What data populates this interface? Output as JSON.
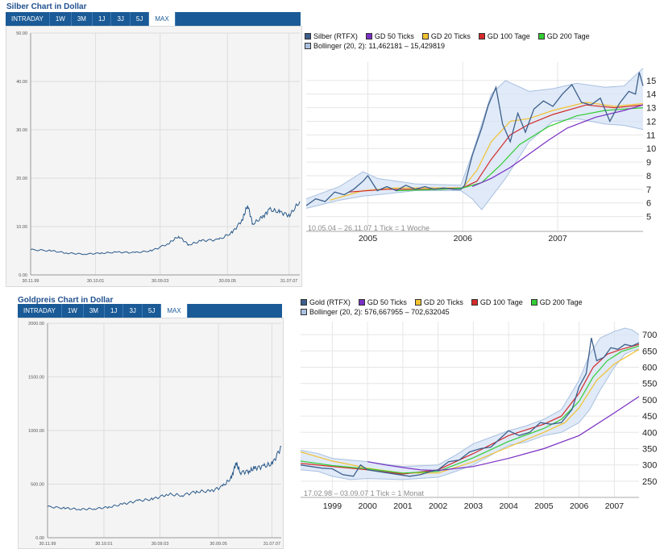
{
  "colors": {
    "line": "#2a5a8a",
    "grid": "#dddddd",
    "band_fill": "#d6e3f5",
    "band_edge": "#a9c0e0",
    "gd50": "#7a2fc4",
    "gd20": "#f2c230",
    "gd100": "#d42a2a",
    "gd200": "#33cc33",
    "price": "#3d5f8c"
  },
  "silver_simple": {
    "title": "Silber Chart in Dollar",
    "tabs": [
      "INTRADAY",
      "1W",
      "3M",
      "1J",
      "3J",
      "5J",
      "MAX"
    ],
    "active_tab": "MAX"
  },
  "gold_simple": {
    "title": "Goldpreis Chart in Dollar",
    "tabs": [
      "INTRADAY",
      "1W",
      "3M",
      "1J",
      "3J",
      "5J",
      "MAX"
    ],
    "active_tab": "MAX"
  },
  "silver_detail": {
    "legend_row1": [
      "Silber (RTFX)",
      "GD 50 Ticks",
      "GD 20 Ticks",
      "GD 100 Tage",
      "GD 200 Tage"
    ],
    "legend_row2": "Bollinger (20, 2): 11,462181 – 15,429819",
    "footer": "10.05.04 – 26.11.07   1 Tick = 1 Woche"
  },
  "gold_detail": {
    "legend_row1": [
      "Gold (RTFX)",
      "GD 50 Ticks",
      "GD 20 Ticks",
      "GD 100 Tage",
      "GD 200 Tage"
    ],
    "legend_row2": "Bollinger (20, 2): 576,667955 – 702,632045",
    "footer": "17.02.98 – 03.09.07   1 Tick = 1 Monat"
  },
  "chart_data": [
    {
      "type": "line",
      "title": "Silber Chart in Dollar",
      "ylim": [
        0,
        50
      ],
      "y_ticks": [
        "0.00",
        "10.00",
        "20.00",
        "30.00",
        "40.00",
        "50.00"
      ],
      "x_tick_labels": [
        "30.11.99",
        "30.10.01",
        "30.09.03",
        "30.09.05",
        "31.07.07"
      ],
      "x": [
        1999.9,
        2000.5,
        2001.0,
        2001.5,
        2002.0,
        2002.5,
        2003.0,
        2003.5,
        2004.0,
        2004.3,
        2004.6,
        2005.0,
        2005.5,
        2005.9,
        2006.2,
        2006.35,
        2006.5,
        2006.8,
        2007.0,
        2007.3,
        2007.6,
        2007.9
      ],
      "values": [
        5.2,
        5.0,
        4.5,
        4.3,
        4.5,
        4.7,
        4.6,
        5.0,
        6.5,
        8.0,
        6.2,
        7.1,
        7.3,
        8.8,
        11.5,
        14.5,
        10.5,
        12.0,
        13.5,
        13.0,
        12.3,
        15.2
      ]
    },
    {
      "type": "line",
      "title": "Goldpreis Chart in Dollar",
      "ylim": [
        0,
        2000
      ],
      "y_ticks": [
        "0.00",
        "500.00",
        "1000.00",
        "1500.00",
        "2000.00"
      ],
      "x_tick_labels": [
        "30.11.99",
        "30.10.01",
        "30.09.03",
        "30.09.05",
        "31.07.07"
      ],
      "x": [
        1999.9,
        2000.5,
        2001.0,
        2001.5,
        2002.0,
        2002.5,
        2003.0,
        2003.5,
        2004.0,
        2004.5,
        2005.0,
        2005.5,
        2005.9,
        2006.2,
        2006.35,
        2006.5,
        2006.8,
        2007.0,
        2007.3,
        2007.6,
        2007.9
      ],
      "values": [
        290,
        275,
        265,
        270,
        285,
        315,
        345,
        360,
        405,
        395,
        430,
        435,
        480,
        560,
        700,
        610,
        620,
        650,
        665,
        690,
        850
      ]
    },
    {
      "type": "line",
      "title": "Silber (RTFX)",
      "ylim": [
        4.5,
        16
      ],
      "y_ticks": [
        "5",
        "6",
        "7",
        "8",
        "9",
        "10",
        "11",
        "12",
        "13",
        "14",
        "15"
      ],
      "xlim": [
        2004.35,
        2007.9
      ],
      "x_tick_labels": [
        "2005",
        "2006",
        "2007"
      ],
      "series": [
        {
          "name": "Silber (RTFX)",
          "x": [
            2004.35,
            2004.45,
            2004.55,
            2004.65,
            2004.75,
            2004.85,
            2004.95,
            2005.0,
            2005.1,
            2005.2,
            2005.3,
            2005.4,
            2005.5,
            2005.6,
            2005.7,
            2005.8,
            2005.9,
            2005.98,
            2006.02,
            2006.1,
            2006.2,
            2006.27,
            2006.35,
            2006.42,
            2006.5,
            2006.58,
            2006.66,
            2006.75,
            2006.85,
            2006.95,
            2007.05,
            2007.15,
            2007.25,
            2007.35,
            2007.45,
            2007.55,
            2007.65,
            2007.75,
            2007.82,
            2007.86,
            2007.9
          ],
          "values": [
            5.8,
            6.3,
            6.1,
            6.8,
            6.6,
            7.0,
            7.6,
            8.0,
            6.9,
            7.2,
            6.9,
            7.3,
            7.0,
            7.2,
            7.0,
            7.1,
            7.0,
            7.0,
            7.3,
            9.5,
            11.5,
            13.2,
            14.5,
            11.8,
            10.5,
            12.6,
            11.2,
            12.9,
            13.5,
            13.1,
            14.0,
            14.7,
            13.4,
            13.2,
            13.7,
            12.0,
            13.3,
            14.2,
            14.0,
            15.6,
            14.6
          ]
        },
        {
          "name": "Bollinger upper",
          "x": [
            2004.35,
            2004.7,
            2004.95,
            2005.1,
            2005.5,
            2005.98,
            2006.1,
            2006.3,
            2006.45,
            2006.7,
            2006.95,
            2007.2,
            2007.5,
            2007.7,
            2007.9
          ],
          "values": [
            6.3,
            7.2,
            8.3,
            7.8,
            7.4,
            7.3,
            9.6,
            14.0,
            15.0,
            14.2,
            14.4,
            14.8,
            14.5,
            14.6,
            15.9
          ]
        },
        {
          "name": "Bollinger lower",
          "x": [
            2004.35,
            2004.7,
            2004.95,
            2005.1,
            2005.5,
            2005.98,
            2006.1,
            2006.2,
            2006.45,
            2006.7,
            2006.95,
            2007.2,
            2007.5,
            2007.7,
            2007.9
          ],
          "values": [
            5.6,
            6.2,
            6.5,
            6.6,
            6.9,
            6.9,
            6.3,
            5.5,
            7.8,
            10.5,
            12.0,
            12.2,
            11.8,
            11.7,
            11.4
          ]
        },
        {
          "name": "GD 20 Ticks",
          "x": [
            2004.6,
            2004.95,
            2005.3,
            2005.7,
            2006.0,
            2006.15,
            2006.3,
            2006.5,
            2006.7,
            2006.95,
            2007.3,
            2007.6,
            2007.9
          ],
          "values": [
            6.2,
            6.9,
            7.1,
            7.1,
            7.1,
            8.4,
            10.5,
            12.0,
            12.2,
            12.8,
            13.4,
            13.1,
            13.3
          ]
        },
        {
          "name": "GD 100 Tage",
          "x": [
            2004.8,
            2005.2,
            2005.6,
            2006.0,
            2006.15,
            2006.3,
            2006.5,
            2006.7,
            2006.95,
            2007.3,
            2007.6,
            2007.9
          ],
          "values": [
            6.8,
            7.0,
            7.0,
            7.1,
            7.6,
            9.2,
            11.0,
            11.8,
            12.5,
            13.2,
            13.0,
            13.2
          ]
        },
        {
          "name": "GD 200 Tage",
          "x": [
            2005.3,
            2005.8,
            2006.0,
            2006.2,
            2006.4,
            2006.6,
            2006.9,
            2007.2,
            2007.5,
            2007.9
          ],
          "values": [
            6.9,
            7.0,
            7.1,
            7.5,
            8.8,
            10.3,
            11.6,
            12.4,
            12.8,
            13.0
          ]
        },
        {
          "name": "GD 50 Ticks",
          "x": [
            2006.1,
            2006.3,
            2006.5,
            2006.7,
            2006.9,
            2007.1,
            2007.4,
            2007.7,
            2007.9
          ],
          "values": [
            7.2,
            7.8,
            8.6,
            9.6,
            10.6,
            11.5,
            12.3,
            12.8,
            13.2
          ]
        }
      ]
    },
    {
      "type": "line",
      "title": "Gold (RTFX)",
      "ylim": [
        225,
        725
      ],
      "y_ticks": [
        "250",
        "300",
        "350",
        "400",
        "450",
        "500",
        "550",
        "600",
        "650",
        "700"
      ],
      "xlim": [
        1998.1,
        2007.7
      ],
      "x_tick_labels": [
        "1999",
        "2000",
        "2001",
        "2002",
        "2003",
        "2004",
        "2005",
        "2006",
        "2007"
      ],
      "series": [
        {
          "name": "Gold (RTFX)",
          "x": [
            1998.1,
            1998.4,
            1998.7,
            1999.0,
            1999.3,
            1999.6,
            1999.8,
            2000.0,
            2000.3,
            2000.6,
            2000.9,
            2001.2,
            2001.5,
            2001.8,
            2002.0,
            2002.3,
            2002.6,
            2002.9,
            2003.2,
            2003.5,
            2003.8,
            2004.0,
            2004.3,
            2004.6,
            2004.9,
            2005.2,
            2005.5,
            2005.8,
            2006.0,
            2006.2,
            2006.35,
            2006.5,
            2006.7,
            2006.9,
            2007.1,
            2007.3,
            2007.5,
            2007.7
          ],
          "values": [
            300,
            295,
            290,
            288,
            270,
            265,
            300,
            285,
            280,
            275,
            270,
            265,
            270,
            280,
            285,
            310,
            315,
            340,
            350,
            355,
            385,
            405,
            390,
            400,
            430,
            425,
            430,
            470,
            540,
            580,
            690,
            620,
            630,
            660,
            655,
            670,
            665,
            675
          ]
        },
        {
          "name": "Bollinger upper",
          "x": [
            1998.1,
            1998.6,
            1999.0,
            1999.5,
            2000.0,
            2001.0,
            2002.0,
            2002.5,
            2003.0,
            2003.5,
            2004.0,
            2004.5,
            2005.0,
            2005.5,
            2006.0,
            2006.3,
            2006.6,
            2007.0,
            2007.3,
            2007.5,
            2007.7
          ],
          "values": [
            345,
            335,
            320,
            315,
            310,
            295,
            300,
            330,
            365,
            385,
            405,
            420,
            440,
            470,
            560,
            640,
            690,
            710,
            720,
            715,
            700
          ]
        },
        {
          "name": "Bollinger lower",
          "x": [
            1998.1,
            1998.6,
            1999.0,
            1999.5,
            2000.0,
            2001.0,
            2002.0,
            2002.5,
            2003.0,
            2003.5,
            2004.0,
            2004.5,
            2005.0,
            2005.5,
            2006.0,
            2006.3,
            2006.6,
            2007.0,
            2007.3,
            2007.5,
            2007.7
          ],
          "values": [
            285,
            280,
            265,
            255,
            258,
            255,
            262,
            280,
            300,
            330,
            360,
            370,
            390,
            400,
            430,
            470,
            530,
            600,
            640,
            650,
            655
          ]
        },
        {
          "name": "GD 20 Ticks",
          "x": [
            1998.1,
            1999.0,
            2000.0,
            2001.0,
            2002.0,
            2003.0,
            2004.0,
            2005.0,
            2005.6,
            2006.0,
            2006.5,
            2007.0,
            2007.7
          ],
          "values": [
            340,
            312,
            290,
            275,
            275,
            310,
            355,
            400,
            430,
            475,
            560,
            610,
            655
          ]
        },
        {
          "name": "GD 100 Tage",
          "x": [
            1998.1,
            1999.0,
            2000.0,
            2001.0,
            2002.0,
            2003.0,
            2004.0,
            2005.0,
            2005.5,
            2006.0,
            2006.4,
            2006.8,
            2007.2,
            2007.7
          ],
          "values": [
            305,
            295,
            285,
            272,
            285,
            335,
            390,
            425,
            450,
            520,
            600,
            640,
            655,
            670
          ]
        },
        {
          "name": "GD 200 Tage",
          "x": [
            1998.1,
            1999.0,
            2000.0,
            2001.0,
            2002.0,
            2003.0,
            2004.0,
            2005.0,
            2005.5,
            2006.0,
            2006.4,
            2006.8,
            2007.2,
            2007.7
          ],
          "values": [
            312,
            298,
            288,
            275,
            280,
            322,
            372,
            412,
            440,
            495,
            570,
            620,
            648,
            665
          ]
        },
        {
          "name": "GD 50 Ticks",
          "x": [
            2000.0,
            2000.5,
            2001.0,
            2001.5,
            2002.0,
            2003.0,
            2004.0,
            2005.0,
            2006.0,
            2007.0,
            2007.7
          ],
          "values": [
            310,
            300,
            292,
            285,
            283,
            295,
            320,
            350,
            390,
            460,
            510
          ]
        }
      ]
    }
  ]
}
